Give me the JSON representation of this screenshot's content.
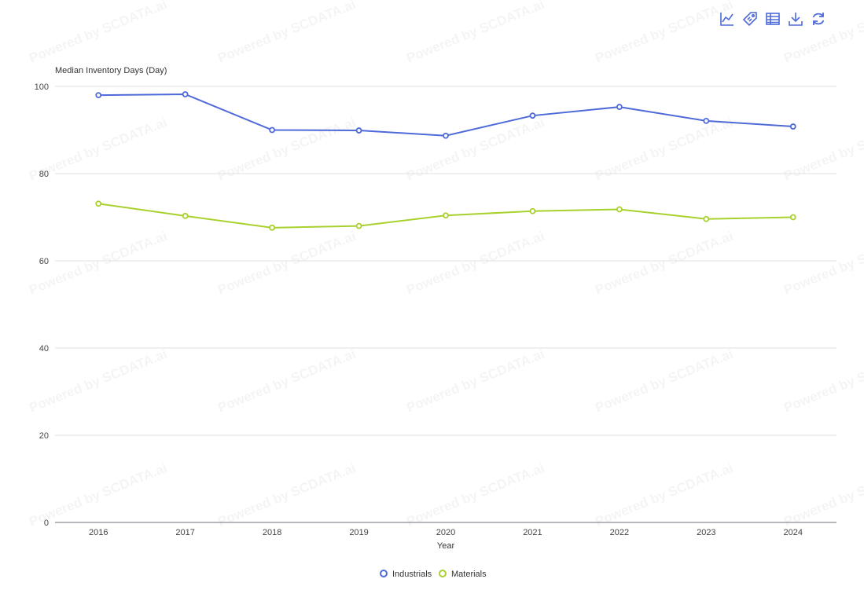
{
  "toolbar": {
    "icons": [
      "line-chart-icon",
      "tag-icon",
      "data-table-icon",
      "download-icon",
      "refresh-icon"
    ]
  },
  "watermark": "Powered by SCDATA.ai",
  "chart_data": {
    "type": "line",
    "ylabel": "Median Inventory Days (Day)",
    "xlabel": "Year",
    "categories": [
      "2016",
      "2017",
      "2018",
      "2019",
      "2020",
      "2021",
      "2022",
      "2023",
      "2024"
    ],
    "ylim": [
      0,
      100
    ],
    "yticks": [
      0,
      20,
      40,
      60,
      80,
      100
    ],
    "grid": true,
    "legend_position": "bottom-center",
    "series": [
      {
        "name": "Industrials",
        "color": "#4e6ad9",
        "values": [
          98.0,
          98.2,
          90.0,
          89.9,
          88.7,
          93.3,
          95.3,
          92.1,
          90.8
        ]
      },
      {
        "name": "Materials",
        "color": "#a9d12e",
        "values": [
          73.1,
          70.3,
          67.6,
          68.0,
          70.4,
          71.4,
          71.8,
          69.6,
          70.0
        ]
      }
    ]
  }
}
